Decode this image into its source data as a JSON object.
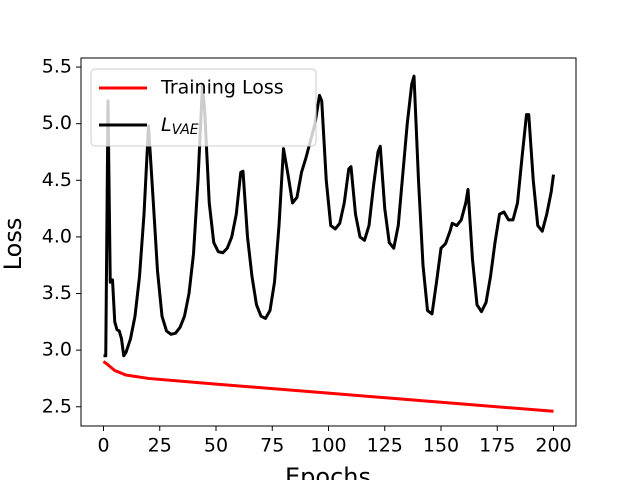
{
  "chart_data": {
    "type": "line",
    "xlabel": "Epochs",
    "ylabel": "Loss",
    "xlim": [
      -10,
      210
    ],
    "ylim": [
      2.33,
      5.58
    ],
    "xticks": [
      0,
      25,
      50,
      75,
      100,
      125,
      150,
      175,
      200
    ],
    "yticks": [
      2.5,
      {
        "value": 3,
        "label": "3.0"
      },
      3.5,
      {
        "value": 4,
        "label": "4.0"
      },
      4.5,
      {
        "value": 5,
        "label": "5.0"
      },
      5.5
    ],
    "grid": false,
    "legend": "upper left",
    "series": [
      {
        "name": "Training Loss",
        "color": "#ff0000",
        "x": [
          0,
          2,
          5,
          10,
          20,
          50,
          100,
          150,
          200
        ],
        "values": [
          2.9,
          2.87,
          2.82,
          2.78,
          2.75,
          2.7,
          2.62,
          2.54,
          2.46
        ]
      },
      {
        "name": "LVAE",
        "color": "#000000",
        "x": [
          0,
          1,
          2,
          3,
          4,
          5,
          6,
          7,
          8,
          9,
          10,
          12,
          14,
          16,
          18,
          20,
          22,
          24,
          26,
          28,
          30,
          32,
          34,
          36,
          38,
          40,
          42,
          44,
          45,
          47,
          49,
          51,
          53,
          55,
          57,
          59,
          61,
          62,
          64,
          66,
          68,
          70,
          72,
          74,
          76,
          78,
          80,
          82,
          84,
          86,
          88,
          90,
          92,
          94,
          96,
          97,
          99,
          101,
          103,
          105,
          107,
          109,
          110,
          112,
          114,
          116,
          118,
          120,
          122,
          123,
          125,
          127,
          129,
          131,
          133,
          135,
          137,
          138,
          140,
          142,
          144,
          146,
          148,
          150,
          152,
          154,
          155,
          157,
          159,
          161,
          162,
          164,
          166,
          168,
          170,
          172,
          174,
          176,
          178,
          180,
          182,
          184,
          186,
          188,
          189,
          191,
          193,
          195,
          197,
          199,
          200
        ],
        "values": [
          2.95,
          2.95,
          5.2,
          3.6,
          3.62,
          3.25,
          3.18,
          3.17,
          3.1,
          2.95,
          2.98,
          3.1,
          3.3,
          3.65,
          4.2,
          4.98,
          4.35,
          3.7,
          3.3,
          3.17,
          3.14,
          3.15,
          3.2,
          3.3,
          3.5,
          3.85,
          4.5,
          5.35,
          5.1,
          4.3,
          3.95,
          3.87,
          3.86,
          3.9,
          4.0,
          4.2,
          4.57,
          4.58,
          4.0,
          3.65,
          3.4,
          3.3,
          3.28,
          3.35,
          3.6,
          4.1,
          4.78,
          4.55,
          4.3,
          4.35,
          4.57,
          4.7,
          4.85,
          5.0,
          5.25,
          5.2,
          4.5,
          4.1,
          4.07,
          4.12,
          4.3,
          4.6,
          4.62,
          4.2,
          4.0,
          3.97,
          4.1,
          4.45,
          4.75,
          4.8,
          4.25,
          3.95,
          3.9,
          4.1,
          4.55,
          5.0,
          5.35,
          5.42,
          4.5,
          3.75,
          3.35,
          3.32,
          3.6,
          3.9,
          3.94,
          4.05,
          4.12,
          4.1,
          4.15,
          4.3,
          4.42,
          3.8,
          3.4,
          3.34,
          3.42,
          3.65,
          3.95,
          4.2,
          4.22,
          4.15,
          4.15,
          4.3,
          4.7,
          5.08,
          5.08,
          4.5,
          4.1,
          4.05,
          4.2,
          4.4,
          4.55
        ]
      }
    ]
  }
}
